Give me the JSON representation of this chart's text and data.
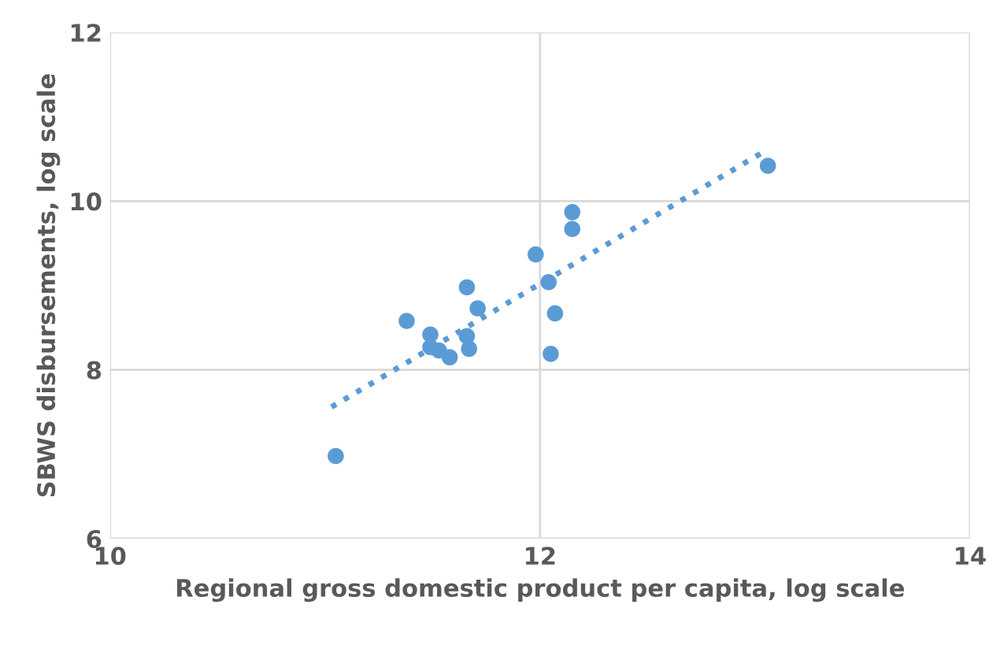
{
  "chart_data": {
    "type": "scatter",
    "xlabel": "Regional gross domestic product per capita, log scale",
    "ylabel": "SBWS disbursements, log scale",
    "xlim": [
      10,
      14
    ],
    "xticks": [
      10,
      12,
      14
    ],
    "ylim": [
      6,
      12
    ],
    "yticks": [
      6,
      8,
      10,
      12
    ],
    "grid": true,
    "series": [
      {
        "color": "#5b9bd5",
        "marker": "circle",
        "x": [
          11.05,
          11.38,
          11.49,
          11.49,
          11.53,
          11.58,
          11.66,
          11.66,
          11.67,
          11.71,
          11.98,
          12.04,
          12.05,
          12.07,
          12.15,
          12.15,
          13.06
        ],
        "values": [
          6.98,
          8.58,
          8.42,
          8.27,
          8.23,
          8.15,
          8.98,
          8.4,
          8.25,
          8.73,
          9.37,
          9.04,
          8.19,
          8.67,
          9.87,
          9.67,
          10.42
        ]
      },
      {
        "type": "line",
        "color": "#5b9bd5",
        "line_style": "dotted",
        "x": [
          11.03,
          13.05
        ],
        "values": [
          7.56,
          10.6
        ]
      }
    ]
  }
}
